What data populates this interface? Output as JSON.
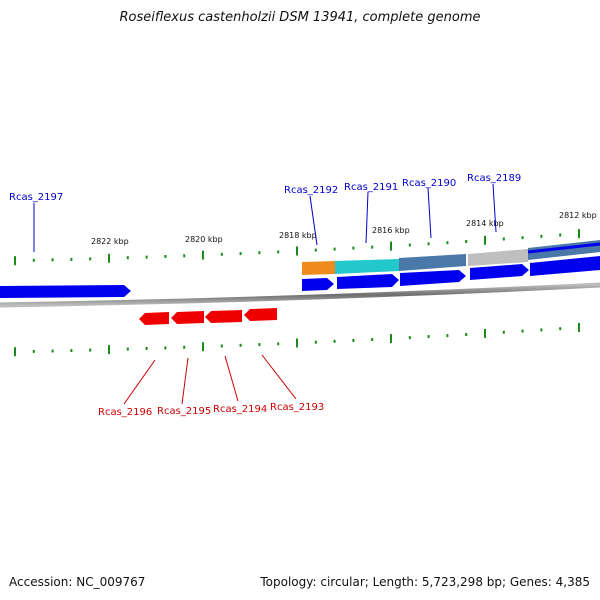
{
  "title": "Roseiflexus castenholzii DSM 13941, complete genome",
  "footer": {
    "accession": "Accession: NC_009767",
    "summary": "Topology: circular; Length: 5,723,298 bp; Genes: 4,385"
  },
  "colors": {
    "forward_gene": "#0000ee",
    "reverse_gene": "#ee0000",
    "ticks": "#1a8a1a",
    "backbone": "#888888",
    "cog_orange": "#f08a1c",
    "cog_cyan": "#22c8cc",
    "cog_steelblue": "#4a78a8",
    "cog_gray": "#bfbfbf"
  },
  "kbp_ticks": [
    "2822 kbp",
    "2820 kbp",
    "2818 kbp",
    "2816 kbp",
    "2814 kbp",
    "2812 kbp"
  ],
  "forward_labels": [
    "Rcas_2197",
    "Rcas_2192",
    "Rcas_2191",
    "Rcas_2190",
    "Rcas_2189"
  ],
  "reverse_labels": [
    "Rcas_2196",
    "Rcas_2195",
    "Rcas_2194",
    "Rcas_2193"
  ]
}
